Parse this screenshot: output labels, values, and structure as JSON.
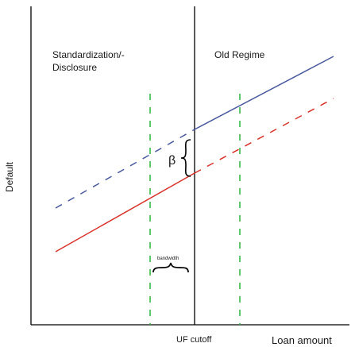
{
  "labels": {
    "left_region_line1": "Standardization/-",
    "left_region_line2": "Disclosure",
    "right_region": "Old Regime",
    "y_axis": "Default",
    "x_axis": "Loan amount",
    "cutoff": "UF cutoff",
    "beta": "β",
    "bandwidth": "bandwidth"
  },
  "colors": {
    "axis": "#000000",
    "old_regime_line": "#4a5a9e",
    "standardization_line": "#d8322a",
    "bandwidth_markers": "#2cb53c"
  }
}
